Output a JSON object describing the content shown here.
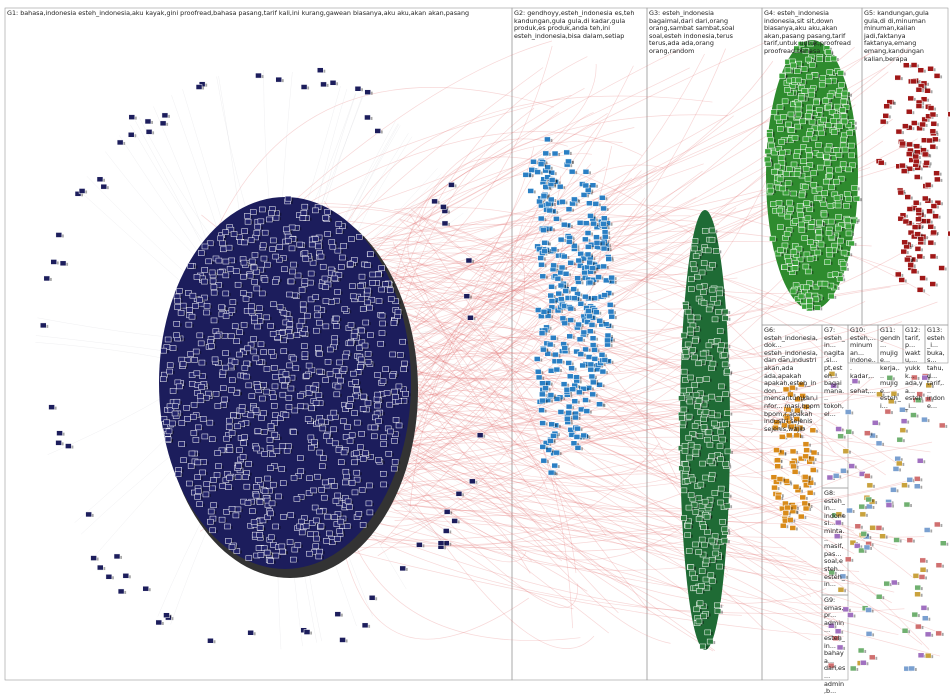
{
  "groups": [
    {
      "label": "G1: bahasa,indonesia esteh_indonesia,aku kayak,gini proofread,bahasa pasang,tarif kali,ini kurang,gawean biasanya,aku aku,akan akan,pasang"
    },
    {
      "label": "G2: gendhoyy,esteh_indonesia es,teh kandungan,gula gula,di kadar,gula produk,es produk,anda teh,ini esteh_indonesia,bisa dalam,setiap"
    },
    {
      "label": "G3: esteh_indonesia bagaimal,dari dari,orang orang,sambat sambat,soal soal,esteh indonesia,terus terus,ada ada,orang orang,random"
    },
    {
      "label": "G4: esteh_indonesia indonesia,sit sit,down biasanya,aku aku,akan akan,pasang pasang,tarif tarif,untuk untuk,proofread proofread,bahasa"
    },
    {
      "label": "G5: kandungan,gula gula,di di,minuman minuman,kalian jadi,faktanya faktanya,emang emang,kandungan kalian,berapa"
    },
    {
      "label": "G6: esteh_indonesia,dok... esteh_indonesia,dan dan,industri akan,ada ada,apakah apakah,esteh_indon... mencantumkan,infor... masi,bpom bpom,r,apakah industri sejenis sejenis,wajib"
    },
    {
      "label": "G7: esteh_in... nagita,sl... pt,esteh... bagaimana... tokoh,el..."
    },
    {
      "label": "G8: esteh_in... indonesi... minta... masif,pas... soal,esteh... esteh_in..."
    },
    {
      "label": "G9: emas,pr... admin... esteh_in... bahaya... dan,es... admin,b..."
    },
    {
      "label": "G10: esteh,... minuman... indone... kadar,... sehat,..."
    },
    {
      "label": "G11: gendh... mujige... kerja,... mujige... esteh_i..."
    },
    {
      "label": "G12: tarif,p... waktu,... yukkk... ada,ya... esteh_i..."
    },
    {
      "label": "G13: esteh_i... buka,s... tahu,d... tarif,... indone..."
    }
  ]
}
